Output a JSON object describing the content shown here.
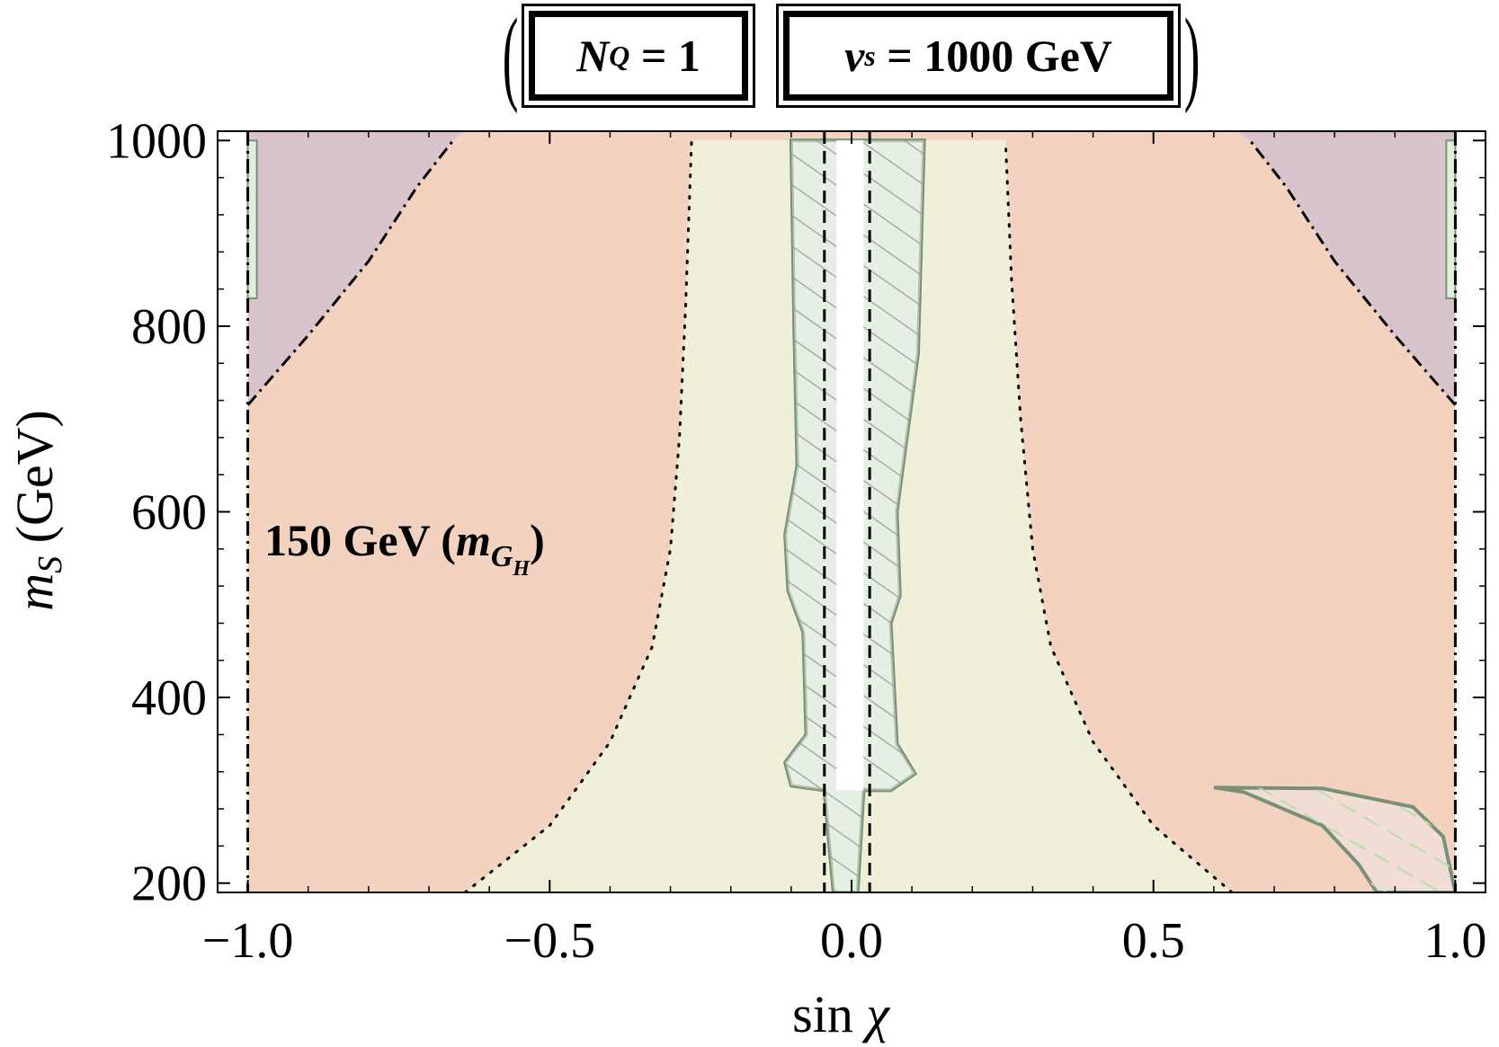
{
  "header": {
    "nq_var": "N",
    "nq_sub": "Q",
    "nq_value": "= 1",
    "vs_var": "v",
    "vs_sub": "s",
    "vs_value": "= 1000 GeV"
  },
  "chart_data": {
    "type": "area",
    "xlabel_text": "sin",
    "xlabel_symbol": "χ",
    "ylabel_var": "m",
    "ylabel_sub": "S",
    "ylabel_unit": "(GeV)",
    "xlim": [
      -1.05,
      1.05
    ],
    "ylim": [
      190,
      1010
    ],
    "x_ticks": [
      -1.0,
      -0.5,
      0.0,
      0.5,
      1.0
    ],
    "x_tick_labels": [
      "−1.0",
      "−0.5",
      "0.0",
      "0.5",
      "1.0"
    ],
    "y_ticks": [
      200,
      400,
      600,
      800,
      1000
    ],
    "y_tick_labels": [
      "200",
      "400",
      "600",
      "800",
      "1000"
    ],
    "grid": false,
    "annotation": {
      "text_prefix": "150 GeV (",
      "var": "m",
      "sub": "G",
      "subsub": "H",
      "text_suffix": ")"
    },
    "colors": {
      "background": "#ffffff",
      "excluded_salmon": "#f3d3bf",
      "allowed_yellow": "#f0f0d8",
      "purple_region": "#d9c3cc",
      "green_band": "#dff0dc",
      "gray_band": "#eeeeee",
      "pink_patch": "#f2dcd6",
      "outline_green": "#7a8f78"
    },
    "regions": {
      "dotted_boundary_left": [
        [
          -0.64,
          190
        ],
        [
          -0.5,
          262
        ],
        [
          -0.4,
          352
        ],
        [
          -0.33,
          455
        ],
        [
          -0.3,
          560
        ],
        [
          -0.285,
          680
        ],
        [
          -0.275,
          820
        ],
        [
          -0.265,
          1000
        ]
      ],
      "dotted_boundary_right": [
        [
          0.63,
          190
        ],
        [
          0.5,
          262
        ],
        [
          0.4,
          352
        ],
        [
          0.33,
          455
        ],
        [
          0.3,
          560
        ],
        [
          0.28,
          700
        ],
        [
          0.265,
          850
        ],
        [
          0.255,
          1000
        ]
      ],
      "dashdot_boundary_left": [
        [
          -1.0,
          715
        ],
        [
          -0.9,
          790
        ],
        [
          -0.8,
          870
        ],
        [
          -0.72,
          950
        ],
        [
          -0.66,
          1000
        ]
      ],
      "dashdot_boundary_right": [
        [
          1.0,
          715
        ],
        [
          0.9,
          790
        ],
        [
          0.8,
          870
        ],
        [
          0.72,
          950
        ],
        [
          0.66,
          1000
        ]
      ],
      "vertical_dashed_x": [
        -0.045,
        0.03
      ],
      "vertical_dashdot_x": [
        -1.0,
        1.0
      ],
      "central_band_outer": [
        [
          -0.1,
          1000
        ],
        [
          -0.095,
          800
        ],
        [
          -0.09,
          650
        ],
        [
          -0.11,
          575
        ],
        [
          -0.105,
          515
        ],
        [
          -0.08,
          470
        ],
        [
          -0.075,
          360
        ],
        [
          -0.11,
          330
        ],
        [
          -0.1,
          305
        ],
        [
          -0.045,
          300
        ],
        [
          -0.03,
          190
        ],
        [
          0.01,
          190
        ],
        [
          0.02,
          300
        ],
        [
          0.065,
          300
        ],
        [
          0.105,
          318
        ],
        [
          0.075,
          350
        ],
        [
          0.065,
          480
        ],
        [
          0.08,
          510
        ],
        [
          0.075,
          600
        ],
        [
          0.11,
          770
        ],
        [
          0.12,
          1000
        ]
      ],
      "central_white_strip": [
        [
          -0.025,
          1000
        ],
        [
          -0.025,
          300
        ],
        [
          0.02,
          300
        ],
        [
          0.02,
          1000
        ]
      ],
      "corner_patch": [
        [
          0.6,
          303
        ],
        [
          0.78,
          302
        ],
        [
          0.93,
          282
        ],
        [
          0.98,
          250
        ],
        [
          1.0,
          190
        ],
        [
          0.87,
          190
        ],
        [
          0.84,
          220
        ],
        [
          0.78,
          262
        ],
        [
          0.65,
          298
        ]
      ]
    }
  }
}
